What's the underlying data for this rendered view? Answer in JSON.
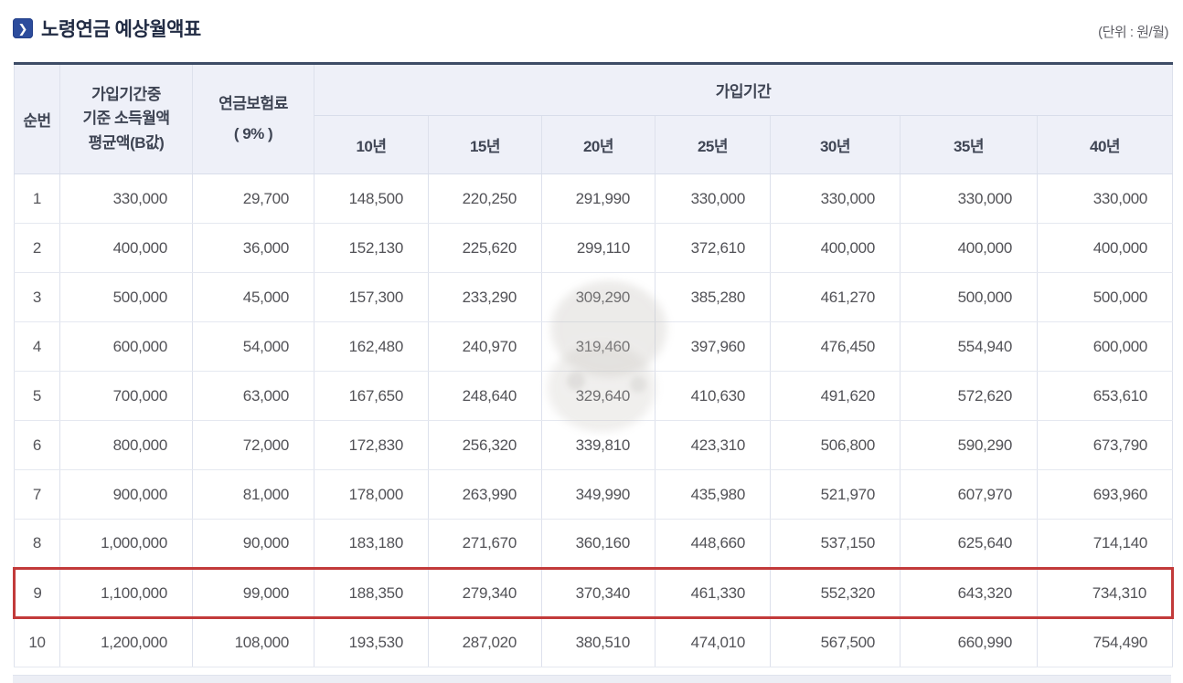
{
  "title": {
    "text": "노령연금 예상월액표",
    "icon": "chevron-right-icon",
    "unit_label": "(단위 : 원/월)"
  },
  "colors": {
    "accent_blue": "#2c4c9c",
    "table_top_border": "#3d4c66",
    "header_bg": "#eef0f8",
    "highlight_red": "#c23a3a"
  },
  "table": {
    "headers": {
      "seq": "순번",
      "income_lines": [
        "가입기간중",
        "기준 소득월액",
        "평균액(B값)"
      ],
      "premium_lines": [
        "연금보험료",
        "( 9% )"
      ],
      "period_group": "가입기간",
      "periods": [
        "10년",
        "15년",
        "20년",
        "25년",
        "30년",
        "35년",
        "40년"
      ]
    },
    "highlight_color": "#c23a3a",
    "rows": [
      {
        "seq": "1",
        "income": "330,000",
        "premium": "29,700",
        "values": [
          "148,500",
          "220,250",
          "291,990",
          "330,000",
          "330,000",
          "330,000",
          "330,000"
        ]
      },
      {
        "seq": "2",
        "income": "400,000",
        "premium": "36,000",
        "values": [
          "152,130",
          "225,620",
          "299,110",
          "372,610",
          "400,000",
          "400,000",
          "400,000"
        ]
      },
      {
        "seq": "3",
        "income": "500,000",
        "premium": "45,000",
        "values": [
          "157,300",
          "233,290",
          "309,290",
          "385,280",
          "461,270",
          "500,000",
          "500,000"
        ]
      },
      {
        "seq": "4",
        "income": "600,000",
        "premium": "54,000",
        "values": [
          "162,480",
          "240,970",
          "319,460",
          "397,960",
          "476,450",
          "554,940",
          "600,000"
        ]
      },
      {
        "seq": "5",
        "income": "700,000",
        "premium": "63,000",
        "values": [
          "167,650",
          "248,640",
          "329,640",
          "410,630",
          "491,620",
          "572,620",
          "653,610"
        ]
      },
      {
        "seq": "6",
        "income": "800,000",
        "premium": "72,000",
        "values": [
          "172,830",
          "256,320",
          "339,810",
          "423,310",
          "506,800",
          "590,290",
          "673,790"
        ]
      },
      {
        "seq": "7",
        "income": "900,000",
        "premium": "81,000",
        "values": [
          "178,000",
          "263,990",
          "349,990",
          "435,980",
          "521,970",
          "607,970",
          "693,960"
        ]
      },
      {
        "seq": "8",
        "income": "1,000,000",
        "premium": "90,000",
        "values": [
          "183,180",
          "271,670",
          "360,160",
          "448,660",
          "537,150",
          "625,640",
          "714,140"
        ]
      },
      {
        "seq": "9",
        "income": "1,100,000",
        "premium": "99,000",
        "values": [
          "188,350",
          "279,340",
          "370,340",
          "461,330",
          "552,320",
          "643,320",
          "734,310"
        ],
        "highlighted": true
      },
      {
        "seq": "10",
        "income": "1,200,000",
        "premium": "108,000",
        "values": [
          "193,530",
          "287,020",
          "380,510",
          "474,010",
          "567,500",
          "660,990",
          "754,490"
        ]
      }
    ]
  }
}
